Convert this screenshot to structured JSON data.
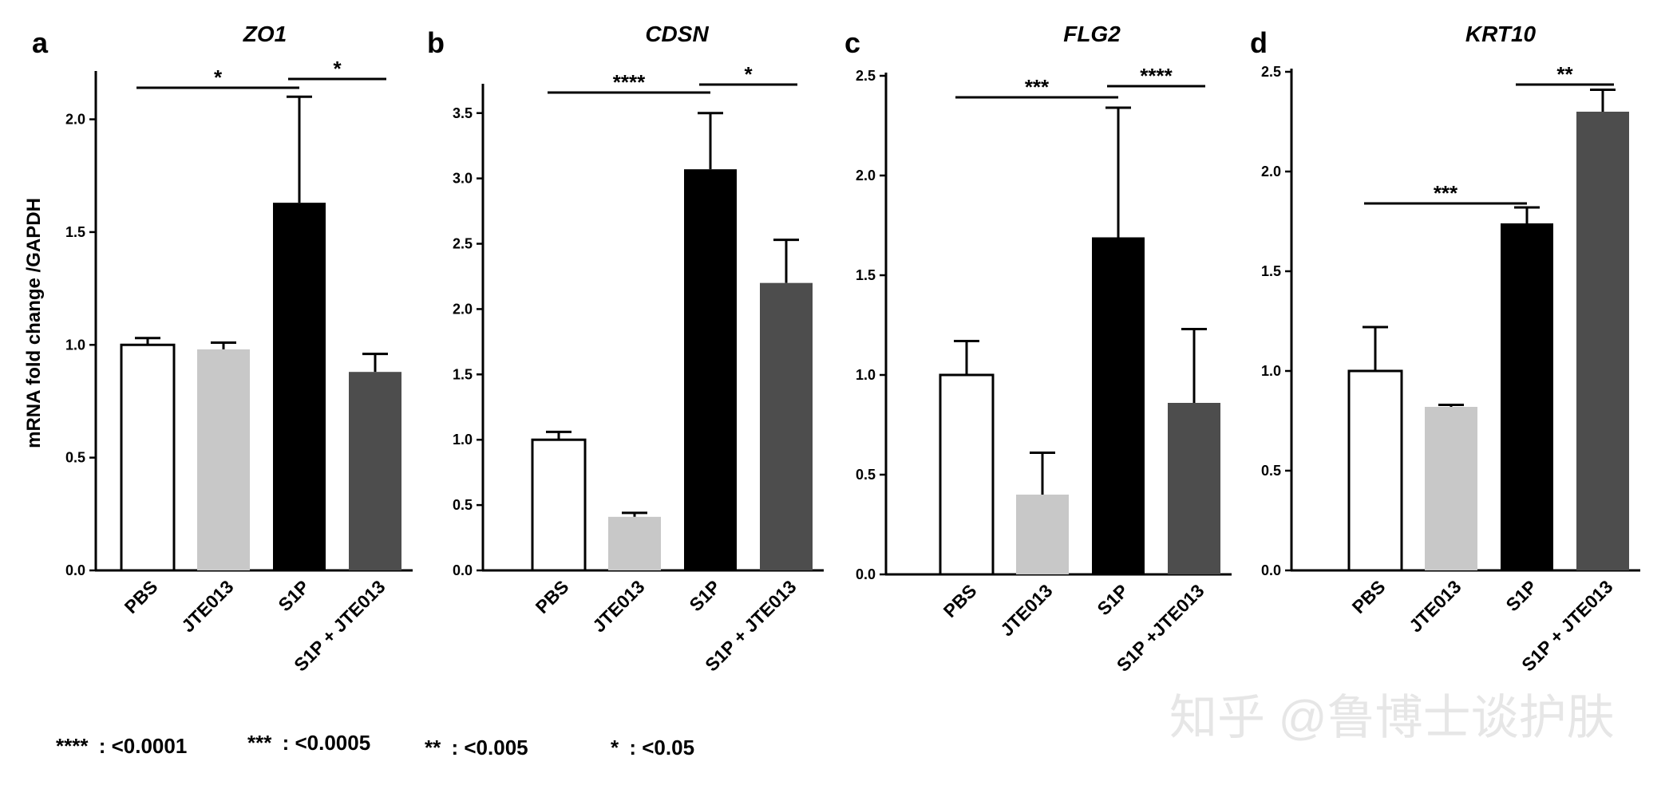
{
  "watermark": "知乎 @鲁博士谈护肤",
  "y_axis_label": "mRNA fold change /GAPDH",
  "legend": [
    {
      "stars": "****",
      "label": ": <0.0001"
    },
    {
      "stars": "***",
      "label": ": <0.0005"
    },
    {
      "stars": "**",
      "label": ": <0.005"
    },
    {
      "stars": "*",
      "label": ": <0.05"
    }
  ],
  "colors": {
    "PBS": "#ffffff",
    "JTE013": "#c8c8c8",
    "S1P": "#000000",
    "S1P+JTE013": "#4d4d4d"
  },
  "chart_data": [
    {
      "type": "bar",
      "panel": "a",
      "title": "ZO1",
      "categories": [
        "PBS",
        "JTE013",
        "S1P",
        "S1P + JTE013"
      ],
      "values": [
        1.0,
        0.98,
        1.63,
        0.88
      ],
      "errors": [
        0.03,
        0.03,
        0.47,
        0.08
      ],
      "ylabel": "mRNA fold change /GAPDH",
      "ylim": [
        0,
        2.2
      ],
      "yticks": [
        0.0,
        0.5,
        1.0,
        1.5,
        2.0
      ],
      "yticklabels": [
        "0.0",
        "0.5",
        "1.0",
        "1.5",
        "2.0"
      ],
      "significance": [
        {
          "from": 0,
          "to": 2,
          "label": "*"
        },
        {
          "from": 2,
          "to": 3,
          "label": "*"
        }
      ]
    },
    {
      "type": "bar",
      "panel": "b",
      "title": "CDSN",
      "categories": [
        "PBS",
        "JTE013",
        "S1P",
        "S1P + JTE013"
      ],
      "values": [
        1.0,
        0.41,
        3.07,
        2.2
      ],
      "errors": [
        0.06,
        0.03,
        0.43,
        0.33
      ],
      "ylabel": "",
      "ylim": [
        0,
        3.7
      ],
      "yticks": [
        0.0,
        0.5,
        1.0,
        1.5,
        2.0,
        2.5,
        3.0,
        3.5
      ],
      "yticklabels": [
        "0.0",
        "0.5",
        "1.0",
        "1.5",
        "2.0",
        "2.5",
        "3.0",
        "3.5"
      ],
      "significance": [
        {
          "from": 0,
          "to": 2,
          "label": "****"
        },
        {
          "from": 2,
          "to": 3,
          "label": "*"
        }
      ]
    },
    {
      "type": "bar",
      "panel": "c",
      "title": "FLG2",
      "categories": [
        "PBS",
        "JTE013",
        "S1P",
        "S1P +JTE013"
      ],
      "values": [
        1.0,
        0.4,
        1.69,
        0.86
      ],
      "errors": [
        0.17,
        0.21,
        0.65,
        0.37
      ],
      "ylabel": "",
      "ylim": [
        0,
        2.5
      ],
      "yticks": [
        0.0,
        0.5,
        1.0,
        1.5,
        2.0,
        2.5
      ],
      "yticklabels": [
        "0.0",
        "0.5",
        "1.0",
        "1.5",
        "2.0",
        "2.5"
      ],
      "significance": [
        {
          "from": 0,
          "to": 2,
          "label": "***"
        },
        {
          "from": 2,
          "to": 3,
          "label": "****"
        }
      ]
    },
    {
      "type": "bar",
      "panel": "d",
      "title": "KRT10",
      "categories": [
        "PBS",
        "JTE013",
        "S1P",
        "S1P + JTE013"
      ],
      "values": [
        1.0,
        0.82,
        1.74,
        2.3
      ],
      "errors": [
        0.22,
        0.01,
        0.08,
        0.11
      ],
      "ylabel": "",
      "ylim": [
        0,
        2.5
      ],
      "yticks": [
        0.0,
        0.5,
        1.0,
        1.5,
        2.0,
        2.5
      ],
      "yticklabels": [
        "0.0",
        "0.5",
        "1.0",
        "1.5",
        "2.0",
        "2.5"
      ],
      "significance": [
        {
          "from": 0,
          "to": 2,
          "label": "***"
        },
        {
          "from": 2,
          "to": 3,
          "label": "**"
        }
      ]
    }
  ]
}
